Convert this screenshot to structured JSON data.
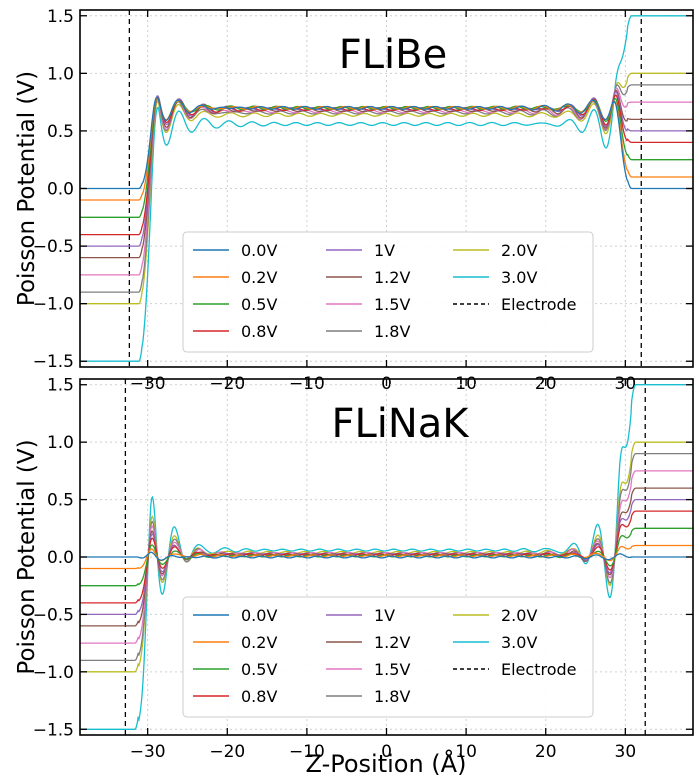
{
  "chart_data": [
    {
      "type": "line",
      "title": "FLiBe",
      "xlabel": "",
      "ylabel": "Poisson Potential (V)",
      "xlim": [
        -38.5,
        38.5
      ],
      "ylim": [
        -1.55,
        1.55
      ],
      "xticks": [
        -30,
        -20,
        -10,
        0,
        10,
        20,
        30
      ],
      "yticks": [
        -1.5,
        -1.0,
        -0.5,
        0.0,
        0.5,
        1.0,
        1.5
      ],
      "xtick_labels": [
        "−30",
        "−20",
        "−10",
        "0",
        "10",
        "20",
        "30"
      ],
      "ytick_labels": [
        "−1.5",
        "−1.0",
        "−0.5",
        "0.0",
        "0.5",
        "1.0",
        "1.5"
      ],
      "grid": true,
      "legend_position": "lower-center",
      "electrode_positions": [
        -32.3,
        32.0
      ],
      "series": [
        {
          "name": "0.0V",
          "voltage": 0.0,
          "color": "#1f77b4",
          "left_plateau": 0.0,
          "bulk": 0.7,
          "right_plateau": 0.0
        },
        {
          "name": "0.2V",
          "voltage": 0.2,
          "color": "#ff7f0e",
          "left_plateau": -0.1,
          "bulk": 0.7,
          "right_plateau": 0.1
        },
        {
          "name": "0.5V",
          "voltage": 0.5,
          "color": "#2ca02c",
          "left_plateau": -0.25,
          "bulk": 0.7,
          "right_plateau": 0.25
        },
        {
          "name": "0.8V",
          "voltage": 0.8,
          "color": "#d62728",
          "left_plateau": -0.4,
          "bulk": 0.69,
          "right_plateau": 0.4
        },
        {
          "name": "1V",
          "voltage": 1.0,
          "color": "#9467bd",
          "left_plateau": -0.5,
          "bulk": 0.69,
          "right_plateau": 0.5
        },
        {
          "name": "1.2V",
          "voltage": 1.2,
          "color": "#8c564b",
          "left_plateau": -0.6,
          "bulk": 0.68,
          "right_plateau": 0.6
        },
        {
          "name": "1.5V",
          "voltage": 1.5,
          "color": "#e377c2",
          "left_plateau": -0.75,
          "bulk": 0.67,
          "right_plateau": 0.75
        },
        {
          "name": "1.8V",
          "voltage": 1.8,
          "color": "#7f7f7f",
          "left_plateau": -0.9,
          "bulk": 0.66,
          "right_plateau": 0.9
        },
        {
          "name": "2.0V",
          "voltage": 2.0,
          "color": "#bcbd22",
          "left_plateau": -1.0,
          "bulk": 0.64,
          "right_plateau": 1.0
        },
        {
          "name": "3.0V",
          "voltage": 3.0,
          "color": "#17becf",
          "left_plateau": -1.5,
          "bulk": 0.56,
          "right_plateau": 1.5
        }
      ],
      "legend_extra": "Electrode"
    },
    {
      "type": "line",
      "title": "FLiNaK",
      "xlabel": "Z-Position (Å)",
      "ylabel": "Poisson Potential (V)",
      "xlim": [
        -38.5,
        38.5
      ],
      "ylim": [
        -1.55,
        1.55
      ],
      "xticks": [
        -30,
        -20,
        -10,
        0,
        10,
        20,
        30
      ],
      "yticks": [
        -1.5,
        -1.0,
        -0.5,
        0.0,
        0.5,
        1.0,
        1.5
      ],
      "xtick_labels": [
        "−30",
        "−20",
        "−10",
        "0",
        "10",
        "20",
        "30"
      ],
      "ytick_labels": [
        "−1.5",
        "−1.0",
        "−0.5",
        "0.0",
        "0.5",
        "1.0",
        "1.5"
      ],
      "grid": true,
      "legend_position": "lower-center",
      "electrode_positions": [
        -32.8,
        32.5
      ],
      "series": [
        {
          "name": "0.0V",
          "voltage": 0.0,
          "color": "#1f77b4",
          "left_plateau": 0.0,
          "bulk": 0.0,
          "right_plateau": 0.0
        },
        {
          "name": "0.2V",
          "voltage": 0.2,
          "color": "#ff7f0e",
          "left_plateau": -0.1,
          "bulk": 0.01,
          "right_plateau": 0.1
        },
        {
          "name": "0.5V",
          "voltage": 0.5,
          "color": "#2ca02c",
          "left_plateau": -0.25,
          "bulk": 0.01,
          "right_plateau": 0.25
        },
        {
          "name": "0.8V",
          "voltage": 0.8,
          "color": "#d62728",
          "left_plateau": -0.4,
          "bulk": 0.02,
          "right_plateau": 0.4
        },
        {
          "name": "1V",
          "voltage": 1.0,
          "color": "#9467bd",
          "left_plateau": -0.5,
          "bulk": 0.02,
          "right_plateau": 0.5
        },
        {
          "name": "1.2V",
          "voltage": 1.2,
          "color": "#8c564b",
          "left_plateau": -0.6,
          "bulk": 0.02,
          "right_plateau": 0.6
        },
        {
          "name": "1.5V",
          "voltage": 1.5,
          "color": "#e377c2",
          "left_plateau": -0.75,
          "bulk": 0.03,
          "right_plateau": 0.75
        },
        {
          "name": "1.8V",
          "voltage": 1.8,
          "color": "#7f7f7f",
          "left_plateau": -0.9,
          "bulk": 0.03,
          "right_plateau": 0.9
        },
        {
          "name": "2.0V",
          "voltage": 2.0,
          "color": "#bcbd22",
          "left_plateau": -1.0,
          "bulk": 0.04,
          "right_plateau": 1.0
        },
        {
          "name": "3.0V",
          "voltage": 3.0,
          "color": "#17becf",
          "left_plateau": -1.5,
          "bulk": 0.06,
          "right_plateau": 1.5
        }
      ],
      "legend_extra": "Electrode"
    }
  ]
}
